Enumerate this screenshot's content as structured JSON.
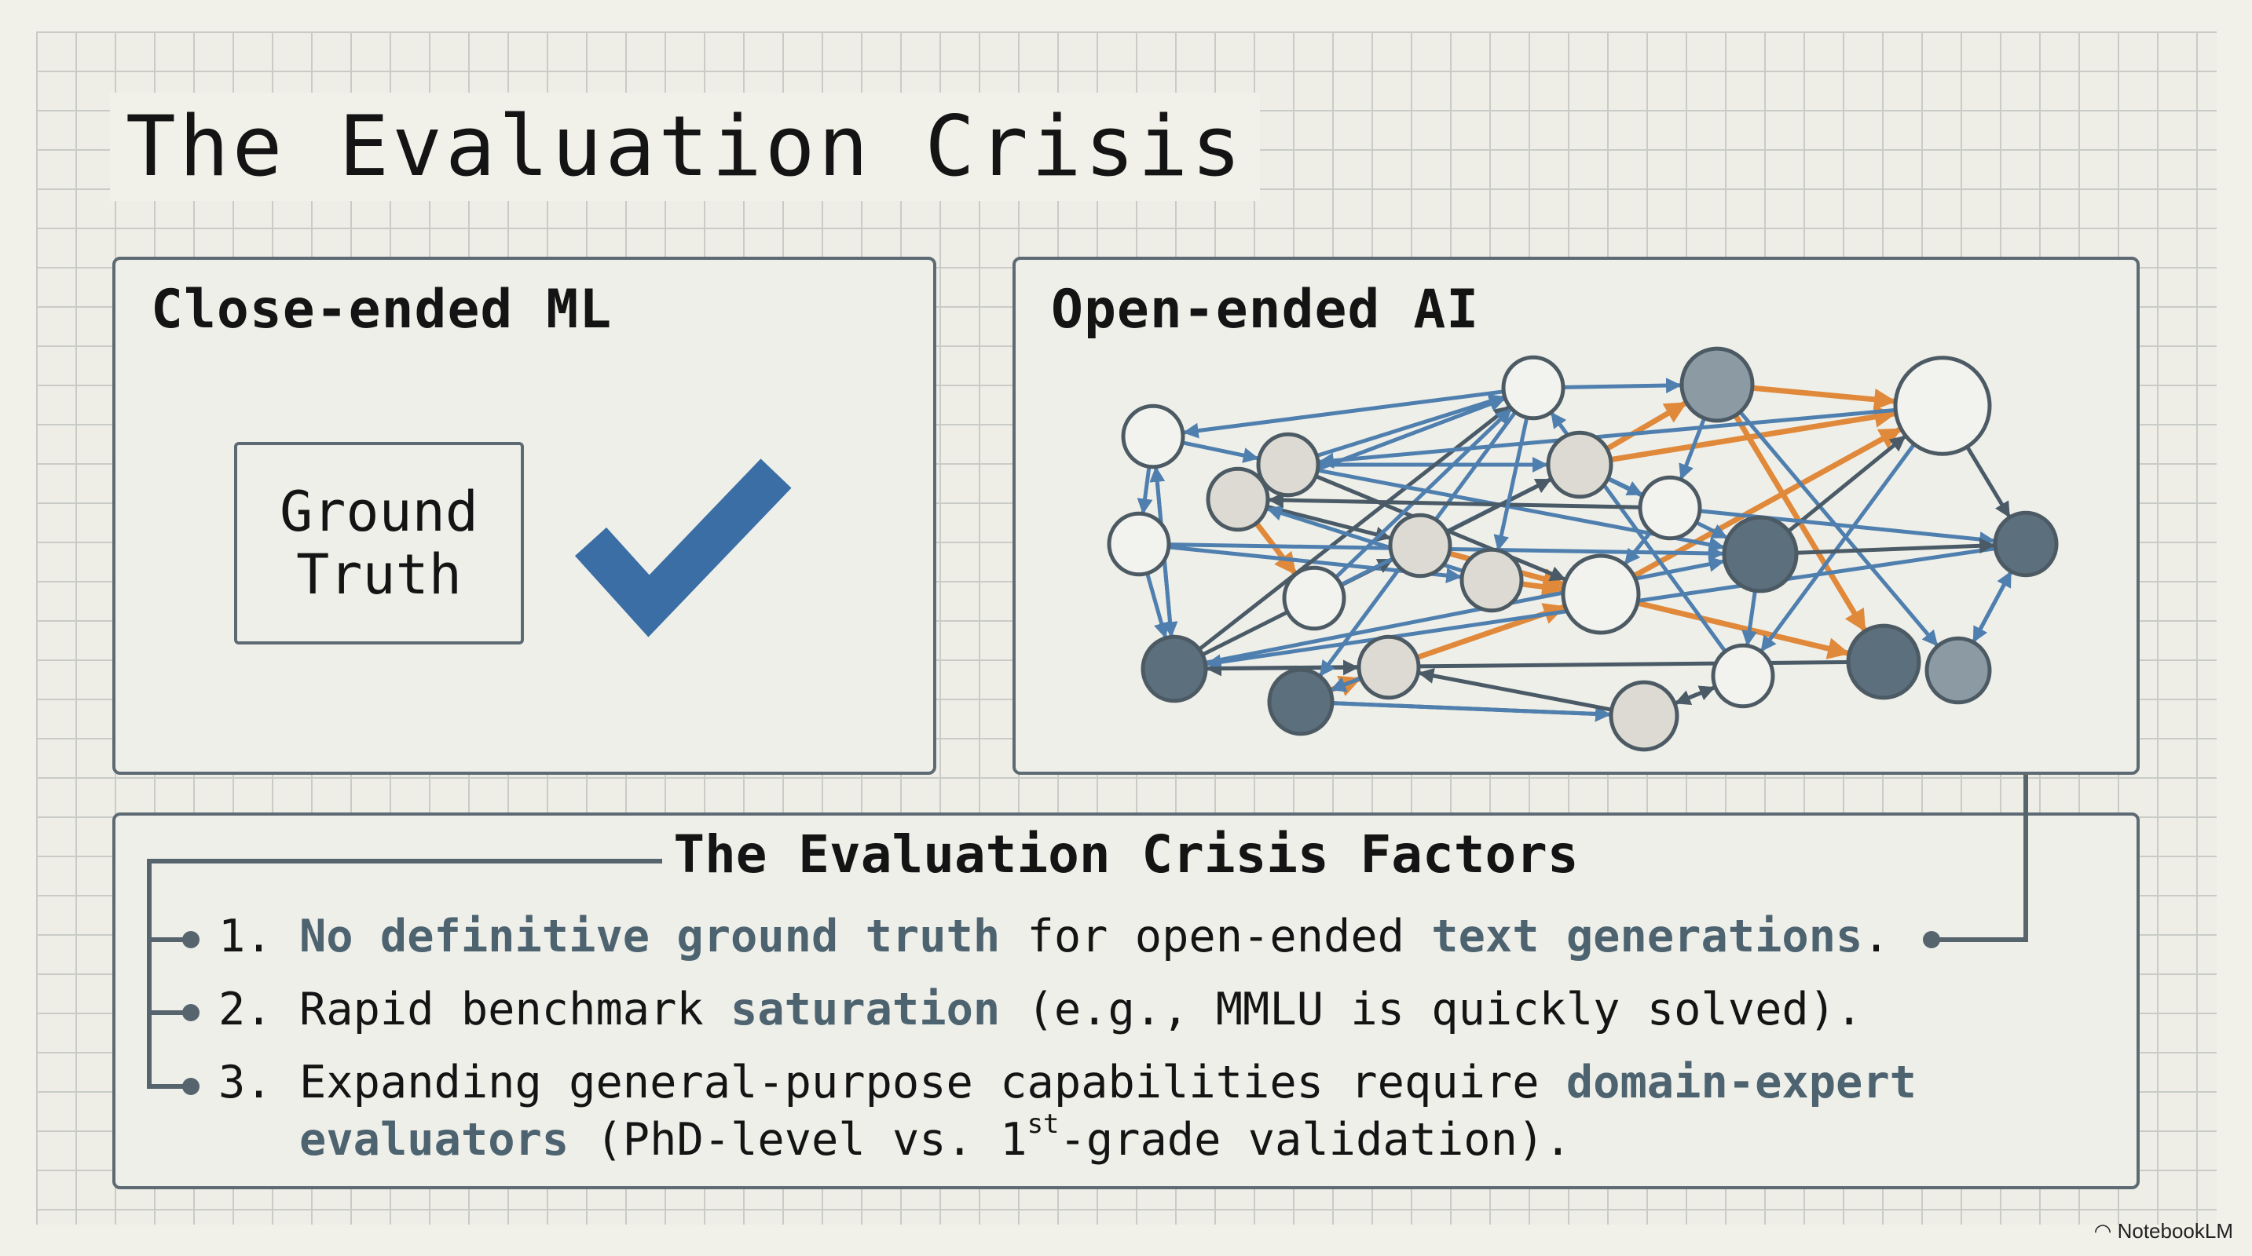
{
  "title": "The Evaluation Crisis",
  "panels": {
    "close_ended": {
      "heading": "Close-ended ML",
      "ground_truth_line1": "Ground",
      "ground_truth_line2": "Truth",
      "check_icon": "checkmark-icon"
    },
    "open_ended": {
      "heading": "Open-ended AI"
    }
  },
  "factors": {
    "heading": "The Evaluation Crisis Factors",
    "items": [
      {
        "num": "1.",
        "parts": [
          [
            "No definitive ground truth",
            true
          ],
          [
            " for open-ended ",
            false
          ],
          [
            "text generations",
            true
          ],
          [
            ".",
            false
          ]
        ]
      },
      {
        "num": "2.",
        "parts": [
          [
            "Rapid benchmark ",
            false
          ],
          [
            "saturation",
            true
          ],
          [
            " (e.g., MMLU is quickly solved).",
            false
          ]
        ]
      },
      {
        "num": "3.",
        "parts": [
          [
            "Expanding general-purpose capabilities require ",
            false
          ],
          [
            "domain-expert",
            true
          ]
        ],
        "line2": [
          [
            "evaluators",
            true
          ],
          [
            " (PhD-level vs. 1",
            false
          ]
        ],
        "sup": "st",
        "line2_end": "-grade validation)."
      }
    ]
  },
  "colors": {
    "accent": "#3a6ea5",
    "highlight": "#4d6370",
    "orange": "#e0893a",
    "edge_blue": "#4f7fae",
    "edge_dark": "#4a5a66",
    "node_dark": "#5b6f7d",
    "node_mid": "#8c9aa4",
    "node_light": "#dcdad2",
    "node_white": "#f2f2ee",
    "stroke": "#4c5a64"
  },
  "graph": {
    "node_fills": [
      "white",
      "mid",
      "white",
      "white",
      "light",
      "light",
      "light",
      "white",
      "white",
      "light",
      "dark",
      "dark",
      "light",
      "white",
      "white",
      "dark",
      "light",
      "dark",
      "white",
      "dark",
      "mid",
      "light"
    ],
    "edges": [
      [
        0,
        3,
        "b"
      ],
      [
        0,
        1,
        "b"
      ],
      [
        1,
        2,
        "o"
      ],
      [
        5,
        1,
        "o"
      ],
      [
        5,
        2,
        "o"
      ],
      [
        4,
        0,
        "b"
      ],
      [
        4,
        5,
        "b"
      ],
      [
        3,
        4,
        "b"
      ],
      [
        6,
        13,
        "o"
      ],
      [
        8,
        12,
        "b"
      ],
      [
        9,
        14,
        "o"
      ],
      [
        12,
        14,
        "o"
      ],
      [
        14,
        2,
        "o"
      ],
      [
        16,
        14,
        "o"
      ],
      [
        17,
        16,
        "o"
      ],
      [
        1,
        19,
        "o"
      ],
      [
        14,
        19,
        "o"
      ],
      [
        15,
        0,
        "d"
      ],
      [
        15,
        9,
        "d"
      ],
      [
        4,
        14,
        "d"
      ],
      [
        6,
        9,
        "d"
      ],
      [
        2,
        11,
        "d"
      ],
      [
        2,
        18,
        "b"
      ],
      [
        1,
        20,
        "b"
      ],
      [
        10,
        2,
        "d"
      ],
      [
        7,
        11,
        "b"
      ],
      [
        15,
        3,
        "b"
      ],
      [
        8,
        15,
        "b"
      ],
      [
        13,
        0,
        "b"
      ],
      [
        13,
        5,
        "b"
      ],
      [
        17,
        21,
        "d"
      ],
      [
        21,
        18,
        "d"
      ],
      [
        17,
        21,
        "b"
      ],
      [
        19,
        15,
        "d"
      ],
      [
        11,
        15,
        "b"
      ],
      [
        18,
        0,
        "b"
      ],
      [
        20,
        11,
        "b"
      ],
      [
        11,
        20,
        "b"
      ],
      [
        3,
        15,
        "b"
      ],
      [
        6,
        0,
        "b"
      ],
      [
        15,
        16,
        "d"
      ],
      [
        16,
        17,
        "b"
      ],
      [
        21,
        16,
        "d"
      ],
      [
        2,
        4,
        "b"
      ],
      [
        10,
        18,
        "b"
      ],
      [
        12,
        6,
        "b"
      ],
      [
        9,
        5,
        "d"
      ],
      [
        4,
        10,
        "b"
      ],
      [
        8,
        10,
        "b"
      ],
      [
        10,
        11,
        "d"
      ],
      [
        7,
        14,
        "b"
      ],
      [
        15,
        10,
        "b"
      ],
      [
        5,
        10,
        "b"
      ],
      [
        18,
        21,
        "d"
      ],
      [
        1,
        7,
        "b"
      ],
      [
        0,
        17,
        "b"
      ],
      [
        7,
        6,
        "d"
      ],
      [
        5,
        7,
        "b"
      ],
      [
        3,
        8,
        "b"
      ],
      [
        0,
        12,
        "b"
      ]
    ]
  },
  "watermark": "NotebookLM"
}
